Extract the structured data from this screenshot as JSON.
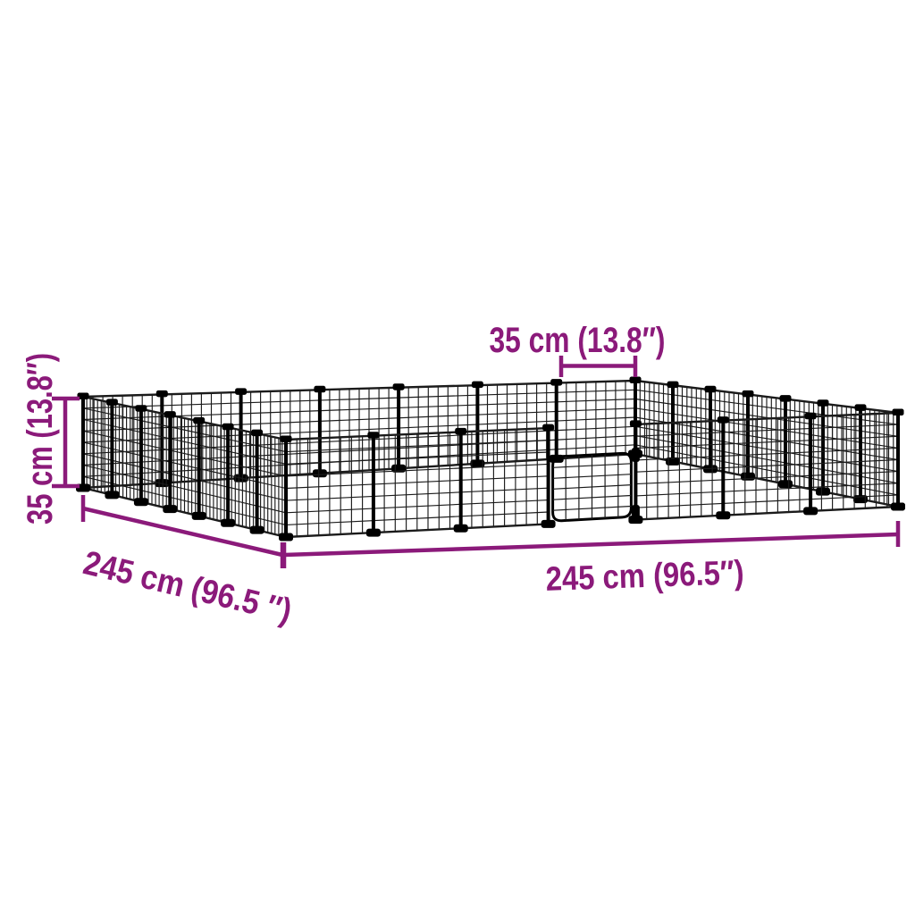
{
  "page": {
    "background_color": "#ffffff"
  },
  "diagram": {
    "subject": "wire-mesh-pet-enclosure-with-door",
    "accent_color": "#8B1A7A",
    "mesh_color": "#1b1b1b",
    "post_color": "#000000",
    "dimensions": {
      "panel_width": {
        "label": "35 cm (13.8″)"
      },
      "height": {
        "label": "35 cm (13.8″)"
      },
      "side_left": {
        "label": "245 cm (96.5 ″)"
      },
      "side_right": {
        "label": "245 cm (96.5″)"
      }
    }
  }
}
